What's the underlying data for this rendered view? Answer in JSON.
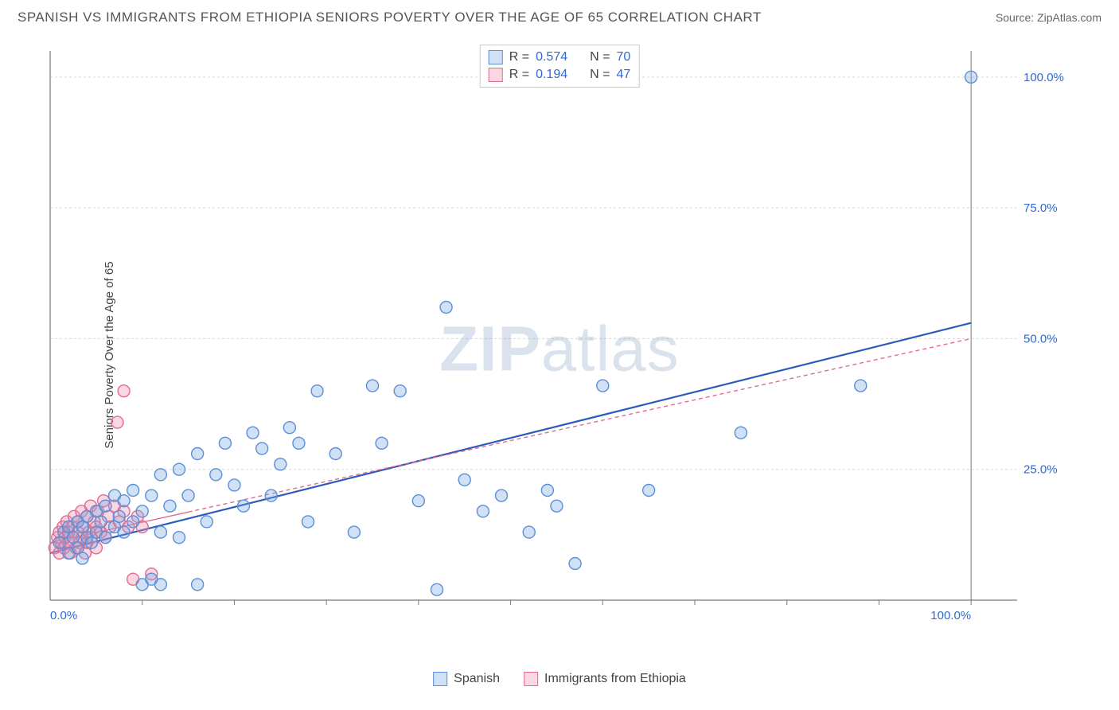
{
  "title": "SPANISH VS IMMIGRANTS FROM ETHIOPIA SENIORS POVERTY OVER THE AGE OF 65 CORRELATION CHART",
  "source_label": "Source: ",
  "source_name": "ZipAtlas.com",
  "ylabel": "Seniors Poverty Over the Age of 65",
  "watermark": {
    "bold": "ZIP",
    "light": "atlas"
  },
  "chart": {
    "type": "scatter",
    "background_color": "#ffffff",
    "grid_color": "#d8d8d8",
    "axis_color": "#777777",
    "xlim": [
      0,
      105
    ],
    "ylim": [
      0,
      105
    ],
    "xtick_step": 10,
    "ytick_step": 25,
    "xtick_end_label": "100.0%",
    "xtick_start_label": "0.0%",
    "ytick_labels": [
      "25.0%",
      "50.0%",
      "75.0%",
      "100.0%"
    ],
    "tick_label_color": "#2e6ad1",
    "tick_label_fontsize": 15,
    "marker_radius": 7.5,
    "marker_stroke_width": 1.4,
    "series": [
      {
        "id": "spanish",
        "label": "Spanish",
        "fill": "rgba(120,165,225,0.35)",
        "stroke": "#5b8fd6",
        "R": "0.574",
        "N": "70",
        "points": [
          [
            1,
            11
          ],
          [
            1.5,
            13
          ],
          [
            2,
            9
          ],
          [
            2,
            14
          ],
          [
            2.5,
            12
          ],
          [
            3,
            10
          ],
          [
            3,
            15
          ],
          [
            3.5,
            8
          ],
          [
            3.5,
            14
          ],
          [
            4,
            12
          ],
          [
            4,
            16
          ],
          [
            4.5,
            11
          ],
          [
            5,
            13
          ],
          [
            5,
            17
          ],
          [
            5.5,
            15
          ],
          [
            6,
            12
          ],
          [
            6,
            18
          ],
          [
            7,
            14
          ],
          [
            7,
            20
          ],
          [
            7.5,
            16
          ],
          [
            8,
            13
          ],
          [
            8,
            19
          ],
          [
            9,
            15
          ],
          [
            9,
            21
          ],
          [
            10,
            17
          ],
          [
            10,
            3
          ],
          [
            11,
            4
          ],
          [
            11,
            20
          ],
          [
            12,
            13
          ],
          [
            12,
            24
          ],
          [
            13,
            18
          ],
          [
            14,
            25
          ],
          [
            14,
            12
          ],
          [
            15,
            20
          ],
          [
            16,
            28
          ],
          [
            17,
            15
          ],
          [
            18,
            24
          ],
          [
            19,
            30
          ],
          [
            20,
            22
          ],
          [
            21,
            18
          ],
          [
            22,
            32
          ],
          [
            23,
            29
          ],
          [
            24,
            20
          ],
          [
            25,
            26
          ],
          [
            26,
            33
          ],
          [
            27,
            30
          ],
          [
            28,
            15
          ],
          [
            29,
            40
          ],
          [
            31,
            28
          ],
          [
            33,
            13
          ],
          [
            35,
            41
          ],
          [
            36,
            30
          ],
          [
            38,
            40
          ],
          [
            40,
            19
          ],
          [
            42,
            2
          ],
          [
            43,
            56
          ],
          [
            45,
            23
          ],
          [
            47,
            17
          ],
          [
            49,
            20
          ],
          [
            52,
            13
          ],
          [
            54,
            21
          ],
          [
            55,
            18
          ],
          [
            57,
            7
          ],
          [
            60,
            41
          ],
          [
            65,
            21
          ],
          [
            75,
            32
          ],
          [
            88,
            41
          ],
          [
            100,
            100
          ],
          [
            12,
            3
          ],
          [
            16,
            3
          ]
        ],
        "trend": {
          "x1": 0,
          "y1": 9,
          "x2": 100,
          "y2": 53,
          "color": "#2b5bbf",
          "width": 2.2,
          "dash": "none",
          "solid_end_x": 100
        }
      },
      {
        "id": "ethiopia",
        "label": "Immigrants from Ethiopia",
        "fill": "rgba(240,140,170,0.35)",
        "stroke": "#e06a94",
        "R": "0.194",
        "N": "47",
        "points": [
          [
            0.5,
            10
          ],
          [
            0.8,
            12
          ],
          [
            1,
            9
          ],
          [
            1,
            13
          ],
          [
            1.2,
            11
          ],
          [
            1.4,
            14
          ],
          [
            1.5,
            10
          ],
          [
            1.6,
            12
          ],
          [
            1.8,
            15
          ],
          [
            2,
            11
          ],
          [
            2,
            13
          ],
          [
            2.2,
            9
          ],
          [
            2.4,
            14
          ],
          [
            2.5,
            12
          ],
          [
            2.6,
            16
          ],
          [
            2.8,
            10
          ],
          [
            3,
            13
          ],
          [
            3,
            15
          ],
          [
            3.2,
            11
          ],
          [
            3.4,
            17
          ],
          [
            3.5,
            12
          ],
          [
            3.6,
            14
          ],
          [
            3.8,
            9
          ],
          [
            4,
            16
          ],
          [
            4,
            11
          ],
          [
            4.2,
            13
          ],
          [
            4.4,
            18
          ],
          [
            4.5,
            12
          ],
          [
            4.8,
            15
          ],
          [
            5,
            10
          ],
          [
            5,
            14
          ],
          [
            5.2,
            17
          ],
          [
            5.5,
            13
          ],
          [
            5.8,
            19
          ],
          [
            6,
            12
          ],
          [
            6.3,
            16
          ],
          [
            6.5,
            14
          ],
          [
            7,
            18
          ],
          [
            7.3,
            34
          ],
          [
            7.5,
            15
          ],
          [
            8,
            17
          ],
          [
            8,
            40
          ],
          [
            8.5,
            14
          ],
          [
            9,
            4
          ],
          [
            9.5,
            16
          ],
          [
            10,
            14
          ],
          [
            11,
            5
          ]
        ],
        "trend": {
          "x1": 0,
          "y1": 11,
          "x2": 100,
          "y2": 50,
          "color": "#e06a94",
          "width": 1.4,
          "dash": "5,4",
          "solid_end_x": 15
        }
      }
    ]
  },
  "stats_legend": {
    "rows": [
      {
        "swatch_idx": 0,
        "r_label": "R =",
        "r_val": "0.574",
        "n_label": "N =",
        "n_val": "70"
      },
      {
        "swatch_idx": 1,
        "r_label": "R =",
        "r_val": "0.194",
        "n_label": "N =",
        "n_val": "47"
      }
    ]
  }
}
